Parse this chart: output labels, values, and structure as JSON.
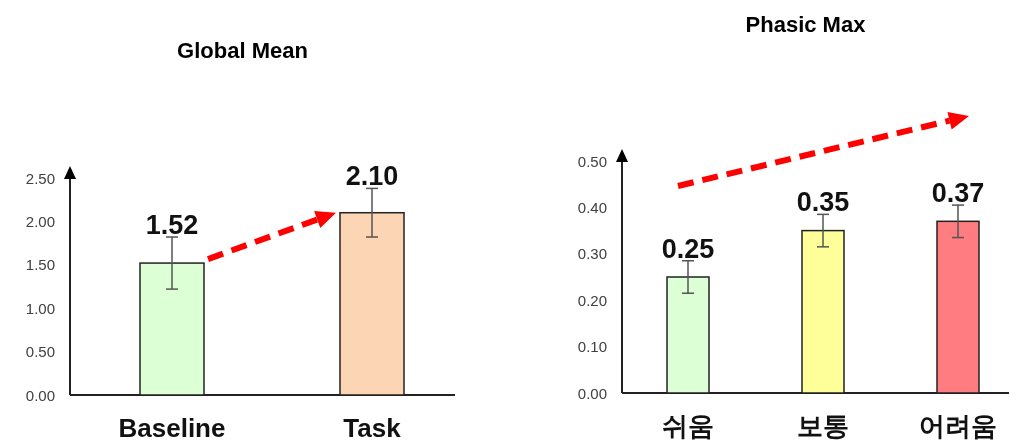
{
  "chart_data": [
    {
      "type": "bar",
      "title": "Global Mean",
      "categories": [
        "Baseline",
        "Task"
      ],
      "values": [
        1.52,
        2.1
      ],
      "colors": [
        "#ddffd5",
        "#fcd5b4"
      ],
      "errors": [
        0.3,
        0.28
      ],
      "value_labels": [
        "1.52",
        "2.10"
      ],
      "ylim": [
        0,
        2.5
      ],
      "yticks": [
        {
          "value": 0,
          "label": "0.00"
        },
        {
          "value": 0.5,
          "label": "0.50"
        },
        {
          "value": 1,
          "label": "1.00"
        },
        {
          "value": 1.5,
          "label": "1.50"
        },
        {
          "value": 2,
          "label": "2.00"
        },
        {
          "value": 2.5,
          "label": "2.50"
        }
      ]
    },
    {
      "type": "bar",
      "title": "Phasic Max",
      "categories": [
        "쉬움",
        "보통",
        "어려움"
      ],
      "values": [
        0.25,
        0.35,
        0.37
      ],
      "colors": [
        "#ddffd5",
        "#ffff99",
        "#ff7c80"
      ],
      "errors": [
        0.035,
        0.035,
        0.035
      ],
      "value_labels": [
        "0.25",
        "0.35",
        "0.37"
      ],
      "ylim": [
        0,
        0.5
      ],
      "yticks": [
        {
          "value": 0,
          "label": "0.00"
        },
        {
          "value": 0.1,
          "label": "0.10"
        },
        {
          "value": 0.2,
          "label": "0.20"
        },
        {
          "value": 0.3,
          "label": "0.30"
        },
        {
          "value": 0.4,
          "label": "0.40"
        },
        {
          "value": 0.5,
          "label": "0.50"
        }
      ]
    }
  ]
}
